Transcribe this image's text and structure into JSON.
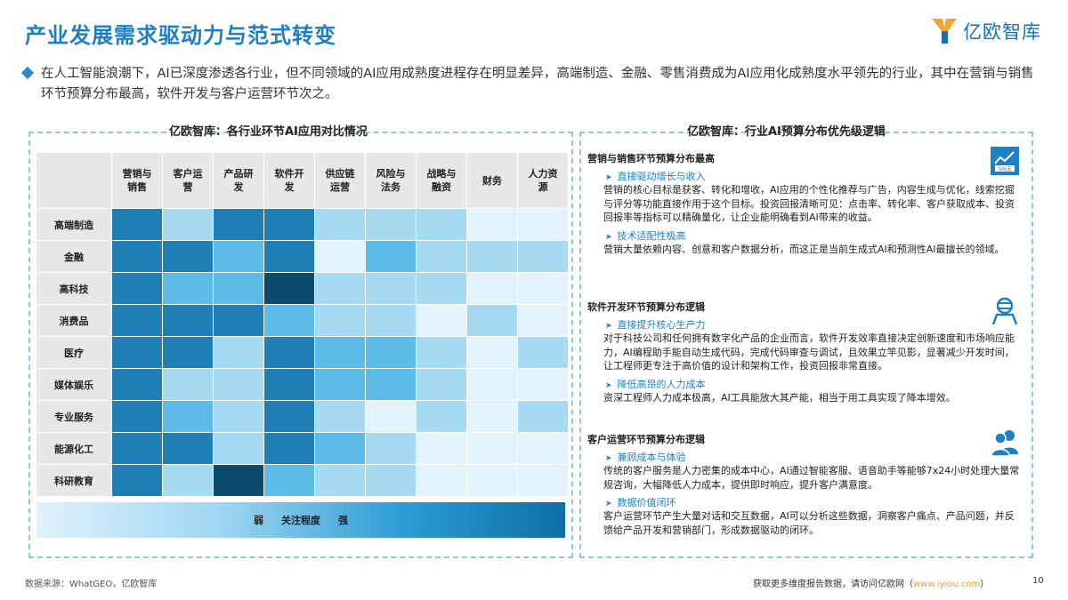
{
  "title": "产业发展需求驱动力与范式转变",
  "brand": {
    "name": "亿欧智库"
  },
  "intro": "在人工智能浪潮下，AI已深度渗透各行业，但不同领域的AI应用成熟度进程存在明显差异，高端制造、金融、零售消费成为AI应用化成熟度水平领先的行业，其中在营销与销售环节预算分布最高，软件开发与客户运营环节次之。",
  "left_header": "亿欧智库：各行业环节AI应用对比情况",
  "right_header": "亿欧智库：行业AI预算分布优先级逻辑",
  "chart_data": {
    "type": "heatmap",
    "columns": [
      "营销与销售",
      "客户运营",
      "产品研发",
      "软件开发",
      "供应链运营",
      "风险与法务",
      "战略与融资",
      "财务",
      "人力资源"
    ],
    "rows": [
      "高端制造",
      "金融",
      "高科技",
      "消费品",
      "医疗",
      "媒体娱乐",
      "专业服务",
      "能源化工",
      "科研教育"
    ],
    "values": [
      [
        4,
        2,
        4,
        4,
        2,
        2,
        2,
        1,
        1
      ],
      [
        4,
        4,
        3,
        4,
        1,
        3,
        2,
        2,
        2
      ],
      [
        4,
        3,
        3,
        5,
        2,
        2,
        2,
        1,
        1
      ],
      [
        4,
        4,
        4,
        3,
        2,
        2,
        1,
        2,
        1
      ],
      [
        4,
        4,
        2,
        4,
        3,
        3,
        2,
        1,
        2
      ],
      [
        4,
        2,
        2,
        4,
        3,
        3,
        2,
        1,
        1
      ],
      [
        4,
        3,
        2,
        4,
        2,
        1,
        2,
        1,
        2
      ],
      [
        4,
        4,
        2,
        4,
        3,
        2,
        1,
        1,
        1
      ],
      [
        4,
        2,
        5,
        3,
        2,
        2,
        1,
        1,
        1
      ]
    ],
    "palette": [
      "#e3f3fb",
      "#a6d9f2",
      "#5dbbe8",
      "#1f7fb5",
      "#0c4b6e"
    ],
    "legend": {
      "low": "弱",
      "label": "关注程度",
      "high": "强"
    }
  },
  "right_panel": {
    "sections": [
      {
        "title": "营销与销售环节预算分布最高",
        "icon": "sale-chart-icon",
        "items": [
          {
            "sub": "直接驱动增长与收入",
            "body": "营销的核心目标是获客、转化和增收，AI应用的个性化推荐与广告，内容生成与优化，线索挖掘与评分等功能直接作用于这个目标。投资回报清晰可见：点击率、转化率、客户获取成本、投资回报率等指标可以精确量化，让企业能明确看到AI带来的收益。"
          },
          {
            "sub": "技术适配性极高",
            "body": "营销大量依赖内容、创意和客户数据分析，而这正是当前生成式AI和预测性AI最擅长的领域。"
          }
        ]
      },
      {
        "title": "软件开发环节预算分布逻辑",
        "icon": "developer-icon",
        "items": [
          {
            "sub": "直接提升核心生产力",
            "body": "对于科技公司和任何拥有数字化产品的企业而言，软件开发效率直接决定创新速度和市场响应能力，AI编程助手能自动生成代码，完成代码审查与调试，且效果立竿见影，显著减少开发时间，让工程师更专注于高价值的设计和架构工作，投资回报非常直接。"
          },
          {
            "sub": "降低高昂的人力成本",
            "body": "资深工程师人力成本极高，AI工具能放大其产能，相当于用工具实现了降本增效。"
          }
        ]
      },
      {
        "title": "客户运营环节预算分布逻辑",
        "icon": "users-icon",
        "items": [
          {
            "sub": "兼顾成本与体验",
            "body": "传统的客户服务是人力密集的成本中心，AI通过智能客服、语音助手等能够7x24小时处理大量常规咨询，大幅降低人力成本，提供即时响应，提升客户满意度。"
          },
          {
            "sub": "数据价值闭环",
            "body": "客户运营环节产生大量对话和交互数据，AI可以分析这些数据，洞察客户痛点、产品问题，并反馈给产品开发和营销部门，形成数据驱动的闭环。"
          }
        ]
      }
    ]
  },
  "footer": {
    "source": "数据来源：WhatGEO，亿欧智库",
    "cta_prefix": "获取更多维度报告数据，请访问亿欧网（",
    "cta_link": "www.iyiou.com",
    "cta_suffix": "）",
    "page": "10"
  }
}
